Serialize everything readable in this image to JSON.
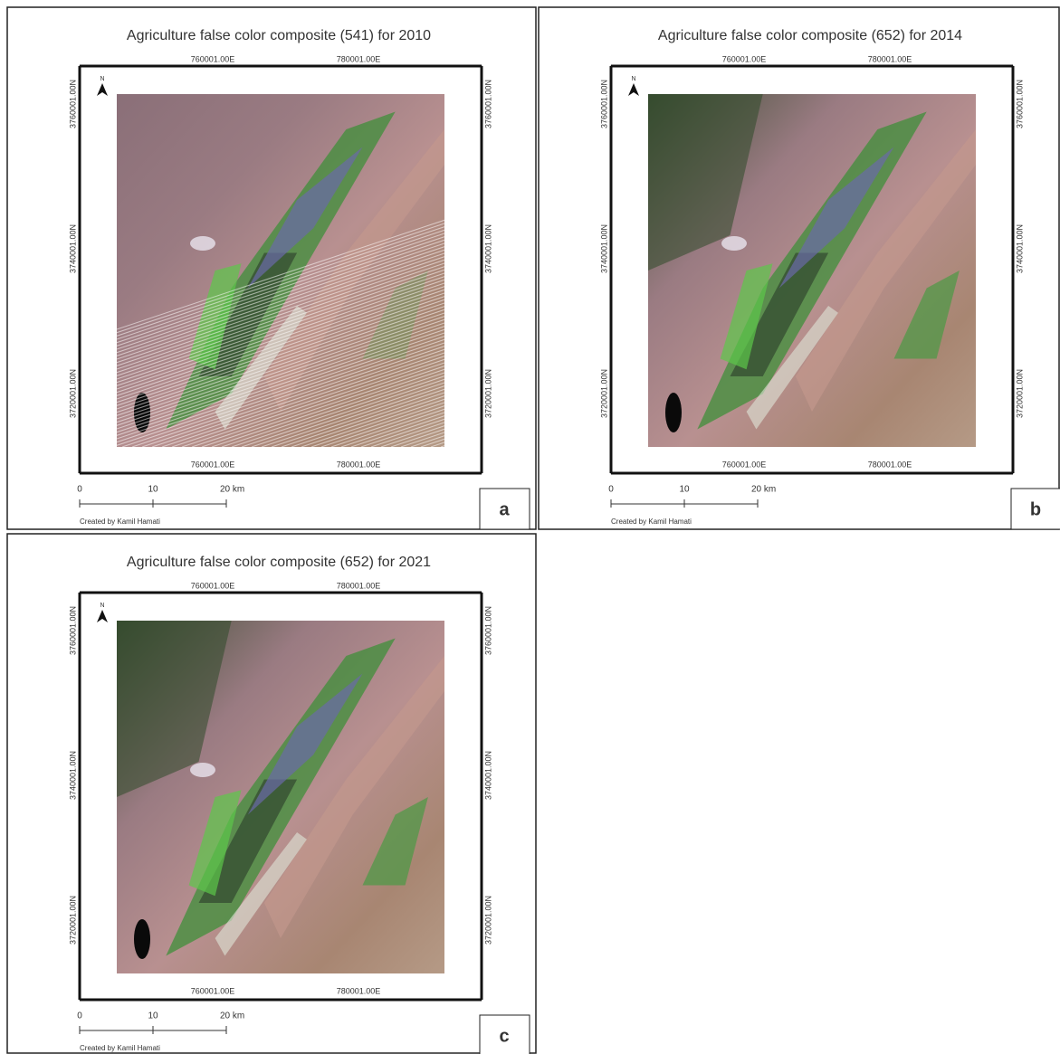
{
  "panels": [
    {
      "title": "Agriculture false color composite (541) for 2010",
      "letter": "a",
      "x_labels": [
        "760001.00E",
        "780001.00E"
      ],
      "y_labels": [
        "3760001.00N",
        "3740001.00N",
        "3720001.00N"
      ],
      "north": "N",
      "scale_labels": [
        "0",
        "10",
        "20 km"
      ],
      "credit": "Created by Kamil Hamati"
    },
    {
      "title": "Agriculture false color composite (652) for 2014",
      "letter": "b",
      "x_labels": [
        "760001.00E",
        "780001.00E"
      ],
      "y_labels": [
        "3760001.00N",
        "3740001.00N",
        "3720001.00N"
      ],
      "north": "N",
      "scale_labels": [
        "0",
        "10",
        "20 km"
      ],
      "credit": "Created by Kamil Hamati"
    },
    {
      "title": "Agriculture false color composite (652) for 2021",
      "letter": "c",
      "x_labels": [
        "760001.00E",
        "780001.00E"
      ],
      "y_labels": [
        "3760001.00N",
        "3740001.00N",
        "3720001.00N"
      ],
      "north": "N",
      "scale_labels": [
        "0",
        "10",
        "20 km"
      ],
      "credit": "Created by Kamil Hamati"
    }
  ]
}
